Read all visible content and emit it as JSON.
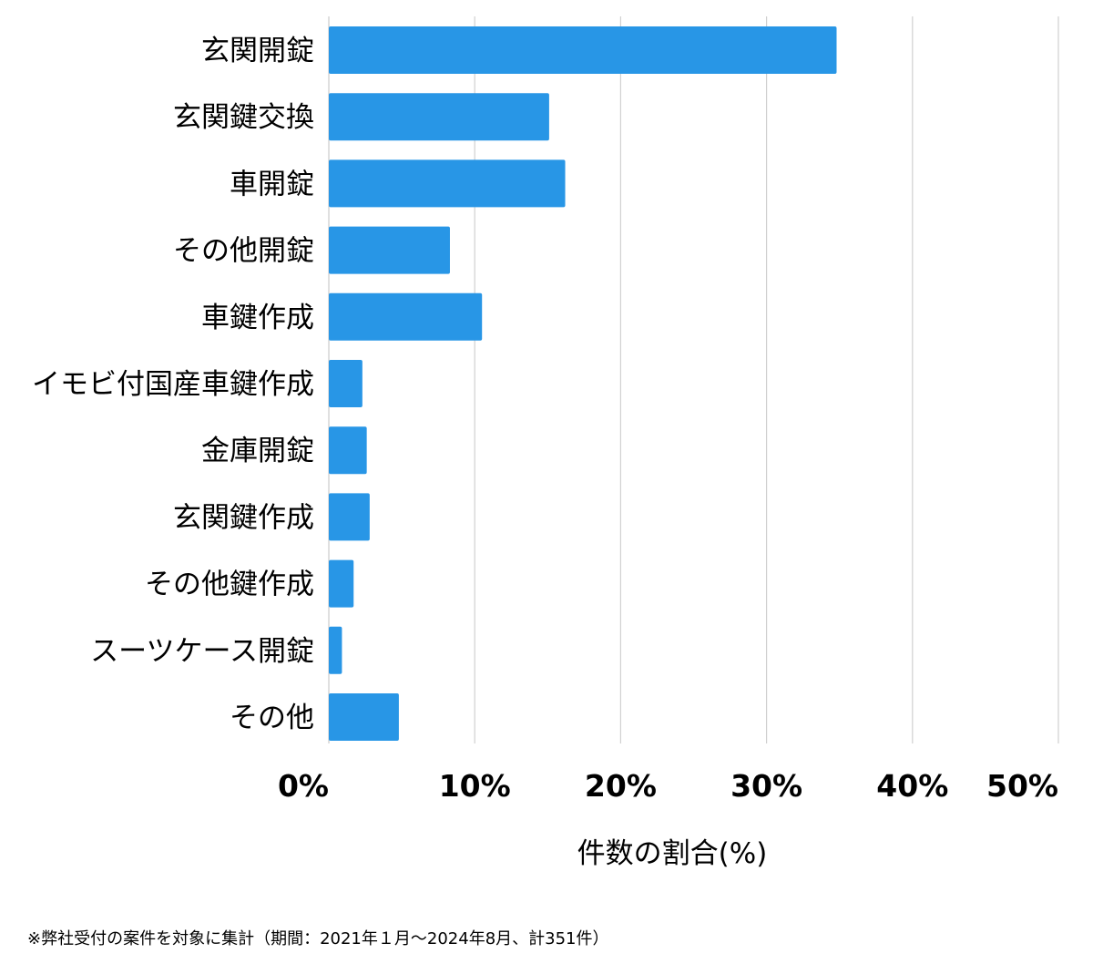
{
  "chart_data": {
    "type": "bar",
    "orientation": "horizontal",
    "categories": [
      "玄関開錠",
      "玄関鍵交換",
      "車開錠",
      "その他開錠",
      "車鍵作成",
      "イモビ付国産車鍵作成",
      "金庫開錠",
      "玄関鍵作成",
      "その他鍵作成",
      "スーツケース開錠",
      "その他"
    ],
    "values": [
      34.8,
      15.1,
      16.2,
      8.3,
      10.5,
      2.3,
      2.6,
      2.8,
      1.7,
      0.9,
      4.8
    ],
    "xlabel": "件数の割合(%)",
    "ylabel": "",
    "xlim": [
      0,
      50
    ],
    "xticks": [
      0,
      10,
      20,
      30,
      40,
      50
    ],
    "xtick_labels": [
      "0%",
      "10%",
      "20%",
      "30%",
      "40%",
      "50%"
    ],
    "grid": "vertical",
    "bar_color": "#2896e6",
    "grid_color": "#d0d0d0"
  },
  "footnote": "※弊社受付の案件を対象に集計（期間：2021年１月～2024年8月、計351件）"
}
